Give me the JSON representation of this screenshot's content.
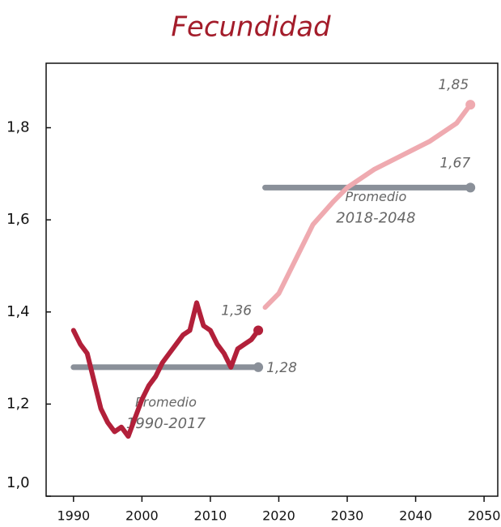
{
  "chart_data": {
    "type": "line",
    "title": "Fecundidad",
    "xlim": [
      1986,
      2052
    ],
    "xticks": [
      1990,
      2000,
      2010,
      2020,
      2030,
      2040,
      2050
    ],
    "ylim": [
      1.0,
      1.94
    ],
    "yticks": [
      {
        "value": 1.0,
        "label": "1,0"
      },
      {
        "value": 1.2,
        "label": "1,2"
      },
      {
        "value": 1.4,
        "label": "1,4"
      },
      {
        "value": 1.6,
        "label": "1,6"
      },
      {
        "value": 1.8,
        "label": "1,8"
      }
    ],
    "grid": false,
    "series": [
      {
        "color": "#8a9099",
        "x": [
          1990,
          2017
        ],
        "values": [
          1.28,
          1.28
        ],
        "value_labels": [
          null,
          "1,28"
        ],
        "end_marker": true,
        "annotation": [
          "Promedio",
          "1990-2017"
        ]
      },
      {
        "color": "#8a9099",
        "x": [
          2018,
          2048
        ],
        "values": [
          1.67,
          1.67
        ],
        "value_labels": [
          null,
          "1,67"
        ],
        "end_marker": true,
        "annotation": [
          "Promedio",
          "2018-2048"
        ]
      },
      {
        "color": "#b2203a",
        "x": [
          1990,
          1991,
          1992,
          1993,
          1994,
          1995,
          1996,
          1997,
          1998,
          1999,
          2000,
          2001,
          2002,
          2003,
          2004,
          2005,
          2006,
          2007,
          2008,
          2009,
          2010,
          2011,
          2012,
          2013,
          2014,
          2015,
          2016,
          2017
        ],
        "values": [
          1.36,
          1.33,
          1.31,
          1.25,
          1.19,
          1.16,
          1.14,
          1.15,
          1.13,
          1.17,
          1.21,
          1.24,
          1.26,
          1.29,
          1.31,
          1.33,
          1.35,
          1.36,
          1.42,
          1.37,
          1.36,
          1.33,
          1.31,
          1.28,
          1.32,
          1.33,
          1.34,
          1.36
        ],
        "value_labels": [
          null,
          null,
          null,
          null,
          null,
          null,
          null,
          null,
          null,
          null,
          null,
          null,
          null,
          null,
          null,
          null,
          null,
          null,
          null,
          null,
          null,
          null,
          null,
          null,
          null,
          null,
          null,
          "1,36"
        ],
        "end_marker": true
      },
      {
        "color": "#efaab0",
        "x": [
          2018,
          2020,
          2022,
          2025,
          2028,
          2030,
          2034,
          2038,
          2042,
          2046,
          2048
        ],
        "values": [
          1.41,
          1.44,
          1.5,
          1.59,
          1.64,
          1.67,
          1.71,
          1.74,
          1.77,
          1.81,
          1.85
        ],
        "value_labels": [
          null,
          null,
          null,
          null,
          null,
          null,
          null,
          null,
          null,
          null,
          "1,85"
        ],
        "end_marker": true
      }
    ]
  }
}
